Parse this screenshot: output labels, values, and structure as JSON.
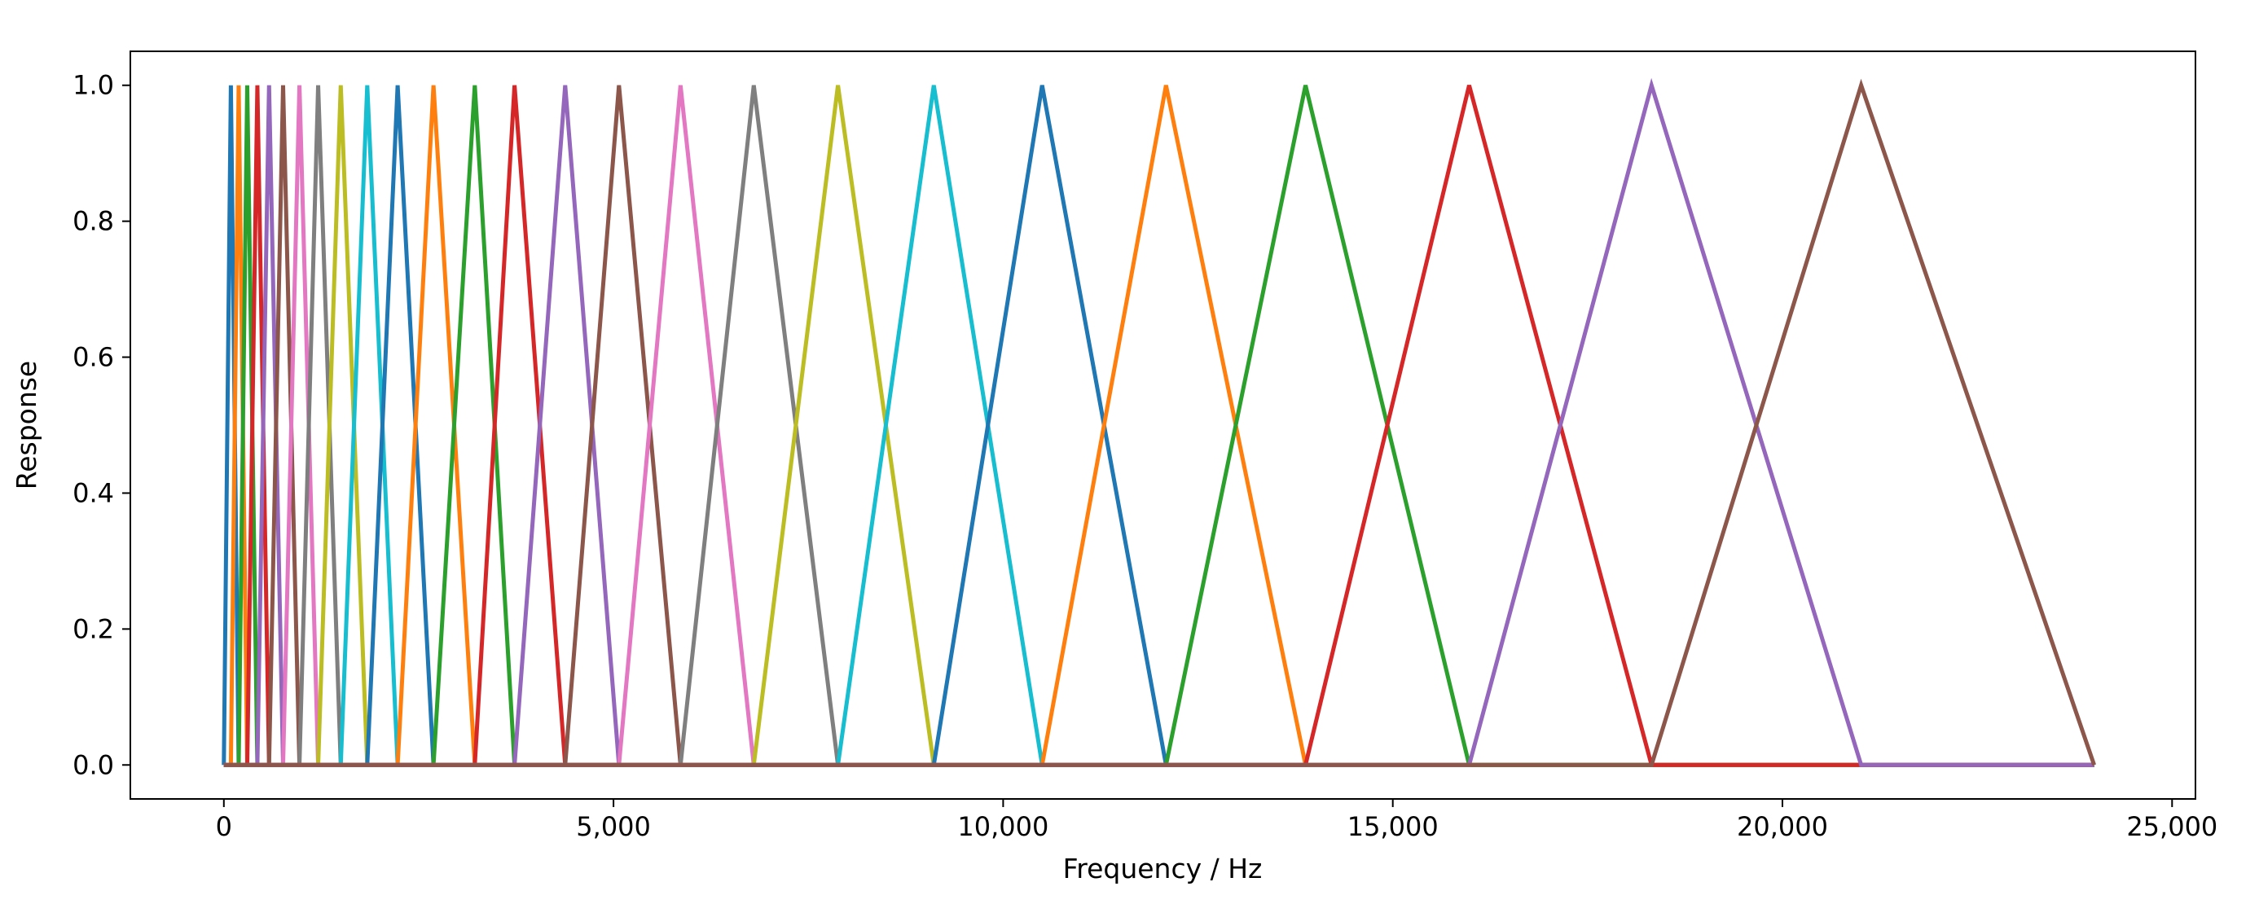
{
  "chart_data": {
    "type": "line",
    "title": "",
    "xlabel": "Frequency / Hz",
    "ylabel": "Response",
    "xlim": [
      -1200,
      25300
    ],
    "ylim": [
      -0.05,
      1.05
    ],
    "x_ticks": [
      0,
      5000,
      10000,
      15000,
      20000,
      25000
    ],
    "x_tick_labels": [
      "0",
      "5,000",
      "10,000",
      "15,000",
      "20,000",
      "25,000"
    ],
    "y_ticks": [
      0.0,
      0.2,
      0.4,
      0.6,
      0.8,
      1.0
    ],
    "y_tick_labels": [
      "0.0",
      "0.2",
      "0.4",
      "0.6",
      "0.8",
      "1.0"
    ],
    "grid": false,
    "legend": "none",
    "filter_edges_hz": [
      0,
      90,
      190,
      300,
      430,
      580,
      760,
      970,
      1210,
      1500,
      1840,
      2230,
      2690,
      3220,
      3730,
      4380,
      5070,
      5860,
      6800,
      7880,
      9110,
      10500,
      12090,
      13880,
      15980,
      18320,
      21010,
      24000
    ],
    "colors": [
      "#1f77b4",
      "#ff7f0e",
      "#2ca02c",
      "#d62728",
      "#9467bd",
      "#8c564b",
      "#e377c2",
      "#7f7f7f",
      "#bcbd22",
      "#17becf"
    ],
    "series": [
      {
        "x": [
          0,
          0,
          90,
          190,
          24000
        ],
        "y": [
          0,
          0,
          1,
          0,
          0
        ]
      },
      {
        "x": [
          0,
          90,
          190,
          300,
          24000
        ],
        "y": [
          0,
          0,
          1,
          0,
          0
        ]
      },
      {
        "x": [
          0,
          190,
          300,
          430,
          24000
        ],
        "y": [
          0,
          0,
          1,
          0,
          0
        ]
      },
      {
        "x": [
          0,
          300,
          430,
          580,
          24000
        ],
        "y": [
          0,
          0,
          1,
          0,
          0
        ]
      },
      {
        "x": [
          0,
          430,
          580,
          760,
          24000
        ],
        "y": [
          0,
          0,
          1,
          0,
          0
        ]
      },
      {
        "x": [
          0,
          580,
          760,
          970,
          24000
        ],
        "y": [
          0,
          0,
          1,
          0,
          0
        ]
      },
      {
        "x": [
          0,
          760,
          970,
          1210,
          24000
        ],
        "y": [
          0,
          0,
          1,
          0,
          0
        ]
      },
      {
        "x": [
          0,
          970,
          1210,
          1500,
          24000
        ],
        "y": [
          0,
          0,
          1,
          0,
          0
        ]
      },
      {
        "x": [
          0,
          1210,
          1500,
          1840,
          24000
        ],
        "y": [
          0,
          0,
          1,
          0,
          0
        ]
      },
      {
        "x": [
          0,
          1500,
          1840,
          2230,
          24000
        ],
        "y": [
          0,
          0,
          1,
          0,
          0
        ]
      },
      {
        "x": [
          0,
          1840,
          2230,
          2690,
          24000
        ],
        "y": [
          0,
          0,
          1,
          0,
          0
        ]
      },
      {
        "x": [
          0,
          2230,
          2690,
          3220,
          24000
        ],
        "y": [
          0,
          0,
          1,
          0,
          0
        ]
      },
      {
        "x": [
          0,
          2690,
          3220,
          3730,
          24000
        ],
        "y": [
          0,
          0,
          1,
          0,
          0
        ]
      },
      {
        "x": [
          0,
          3220,
          3730,
          4380,
          24000
        ],
        "y": [
          0,
          0,
          1,
          0,
          0
        ]
      },
      {
        "x": [
          0,
          3730,
          4380,
          5070,
          24000
        ],
        "y": [
          0,
          0,
          1,
          0,
          0
        ]
      },
      {
        "x": [
          0,
          4380,
          5070,
          5860,
          24000
        ],
        "y": [
          0,
          0,
          1,
          0,
          0
        ]
      },
      {
        "x": [
          0,
          5070,
          5860,
          6800,
          24000
        ],
        "y": [
          0,
          0,
          1,
          0,
          0
        ]
      },
      {
        "x": [
          0,
          5860,
          6800,
          7880,
          24000
        ],
        "y": [
          0,
          0,
          1,
          0,
          0
        ]
      },
      {
        "x": [
          0,
          6800,
          7880,
          9110,
          24000
        ],
        "y": [
          0,
          0,
          1,
          0,
          0
        ]
      },
      {
        "x": [
          0,
          7880,
          9110,
          10500,
          24000
        ],
        "y": [
          0,
          0,
          1,
          0,
          0
        ]
      },
      {
        "x": [
          0,
          9110,
          10500,
          12090,
          24000
        ],
        "y": [
          0,
          0,
          1,
          0,
          0
        ]
      },
      {
        "x": [
          0,
          10500,
          12090,
          13880,
          24000
        ],
        "y": [
          0,
          0,
          1,
          0,
          0
        ]
      },
      {
        "x": [
          0,
          12090,
          13880,
          15980,
          24000
        ],
        "y": [
          0,
          0,
          1,
          0,
          0
        ]
      },
      {
        "x": [
          0,
          13880,
          15980,
          18320,
          24000
        ],
        "y": [
          0,
          0,
          1,
          0,
          0
        ]
      },
      {
        "x": [
          0,
          15980,
          18320,
          21010,
          24000
        ],
        "y": [
          0,
          0,
          1,
          0,
          0
        ]
      },
      {
        "x": [
          0,
          18320,
          21010,
          24000,
          24000
        ],
        "y": [
          0,
          0,
          1,
          0,
          0
        ]
      }
    ]
  }
}
